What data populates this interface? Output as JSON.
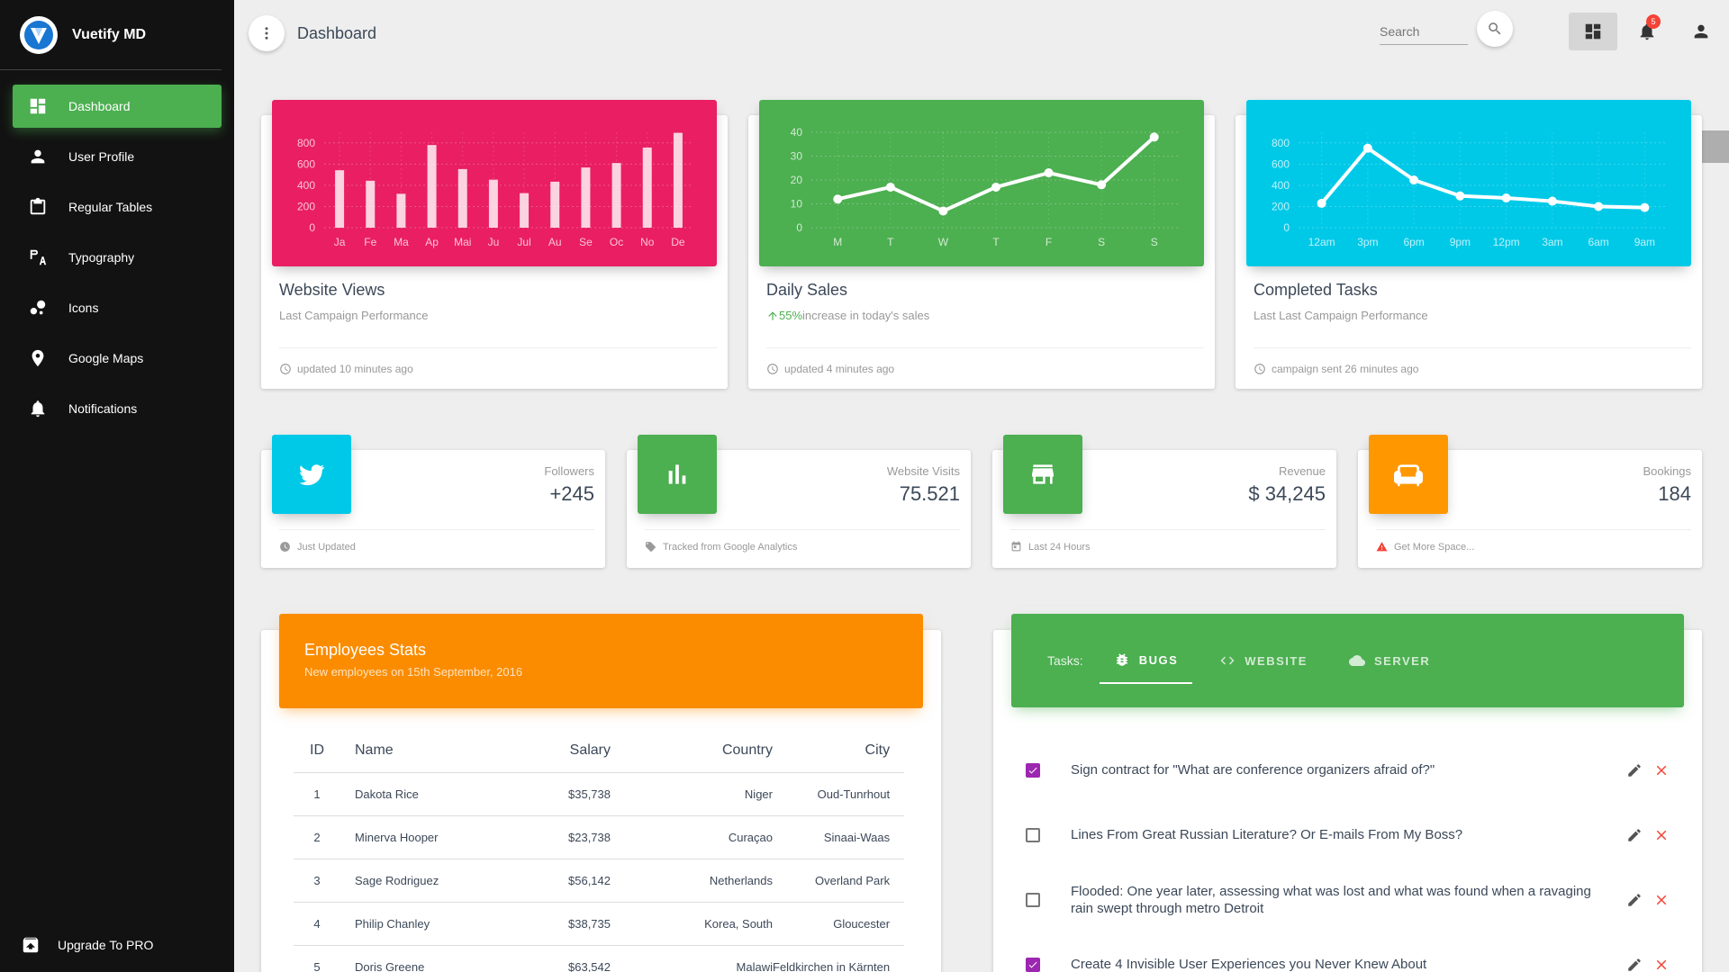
{
  "brand": {
    "name": "Vuetify MD"
  },
  "sidebar": {
    "items": [
      {
        "label": "Dashboard",
        "icon": "dashboard-icon",
        "active": true
      },
      {
        "label": "User Profile",
        "icon": "person-icon"
      },
      {
        "label": "Regular Tables",
        "icon": "clipboard-icon"
      },
      {
        "label": "Typography",
        "icon": "typography-icon"
      },
      {
        "label": "Icons",
        "icon": "bubbles-icon"
      },
      {
        "label": "Google Maps",
        "icon": "map-marker-icon"
      },
      {
        "label": "Notifications",
        "icon": "bell-icon"
      }
    ],
    "upgrade": "Upgrade To PRO"
  },
  "toolbar": {
    "title": "Dashboard",
    "search_placeholder": "Search",
    "notification_count": "5"
  },
  "charts": {
    "views": {
      "title": "Website Views",
      "subtitle": "Last Campaign Performance",
      "footer": "updated 10 minutes ago",
      "color": "#e91e63"
    },
    "sales": {
      "title": "Daily Sales",
      "percent": "55%",
      "subtitle": "increase in today's sales",
      "footer": "updated 4 minutes ago",
      "color": "#4caf50"
    },
    "tasks": {
      "title": "Completed Tasks",
      "subtitle": "Last Last Campaign Performance",
      "footer": "campaign sent 26 minutes ago",
      "color": "#00c9e8"
    }
  },
  "chart_data": [
    {
      "type": "bar",
      "categories": [
        "Ja",
        "Fe",
        "Ma",
        "Ap",
        "Mai",
        "Ju",
        "Jul",
        "Au",
        "Se",
        "Oc",
        "No",
        "De"
      ],
      "values": [
        542,
        443,
        320,
        780,
        553,
        453,
        326,
        434,
        568,
        610,
        756,
        895
      ],
      "yticks": [
        0,
        200,
        400,
        600,
        800
      ],
      "ylim": [
        0,
        900
      ]
    },
    {
      "type": "line",
      "categories": [
        "M",
        "T",
        "W",
        "T",
        "F",
        "S",
        "S"
      ],
      "values": [
        12,
        17,
        7,
        17,
        23,
        18,
        38
      ],
      "yticks": [
        0,
        10,
        20,
        30,
        40
      ],
      "ylim": [
        0,
        40
      ]
    },
    {
      "type": "line",
      "categories": [
        "12am",
        "3pm",
        "6pm",
        "9pm",
        "12pm",
        "3am",
        "6am",
        "9am"
      ],
      "values": [
        230,
        750,
        450,
        300,
        280,
        250,
        200,
        190
      ],
      "yticks": [
        0,
        200,
        400,
        600,
        800
      ],
      "ylim": [
        0,
        900
      ]
    }
  ],
  "stats": [
    {
      "category": "Followers",
      "value": "+245",
      "footer": "Just Updated",
      "icon": "twitter-icon",
      "footer_icon": "clock-icon",
      "color": "#00c9e8"
    },
    {
      "category": "Website Visits",
      "value": "75.521",
      "footer": "Tracked from Google Analytics",
      "icon": "bar-chart-icon",
      "footer_icon": "tag-icon",
      "color": "#4caf50"
    },
    {
      "category": "Revenue",
      "value": "$ 34,245",
      "footer": "Last 24 Hours",
      "icon": "store-icon",
      "footer_icon": "calendar-icon",
      "color": "#4caf50"
    },
    {
      "category": "Bookings",
      "value": "184",
      "footer": "Get More Space...",
      "icon": "sofa-icon",
      "footer_icon": "warning-icon",
      "color": "#ff9800"
    }
  ],
  "employees": {
    "title": "Employees Stats",
    "subtitle": "New employees on 15th September, 2016",
    "headers": [
      "ID",
      "Name",
      "Salary",
      "Country",
      "City"
    ],
    "rows": [
      [
        "1",
        "Dakota Rice",
        "$35,738",
        "Niger",
        "Oud-Tunrhout"
      ],
      [
        "2",
        "Minerva Hooper",
        "$23,738",
        "Curaçao",
        "Sinaai-Waas"
      ],
      [
        "3",
        "Sage Rodriguez",
        "$56,142",
        "Netherlands",
        "Overland Park"
      ],
      [
        "4",
        "Philip Chanley",
        "$38,735",
        "Korea, South",
        "Gloucester"
      ],
      [
        "5",
        "Doris Greene",
        "$63,542",
        "Malawi",
        "Feldkirchen in Kärnten"
      ]
    ]
  },
  "tasks": {
    "label": "Tasks:",
    "tabs": [
      {
        "label": "BUGS",
        "icon": "bug-icon",
        "active": true
      },
      {
        "label": "WEBSITE",
        "icon": "code-icon"
      },
      {
        "label": "SERVER",
        "icon": "cloud-icon"
      }
    ],
    "items": [
      {
        "text": "Sign contract for \"What are conference organizers afraid of?\"",
        "checked": true
      },
      {
        "text": "Lines From Great Russian Literature? Or E-mails From My Boss?",
        "checked": false
      },
      {
        "text": "Flooded: One year later, assessing what was lost and what was found when a ravaging rain swept through metro Detroit",
        "checked": false
      },
      {
        "text": "Create 4 Invisible User Experiences you Never Knew About",
        "checked": true
      }
    ]
  }
}
